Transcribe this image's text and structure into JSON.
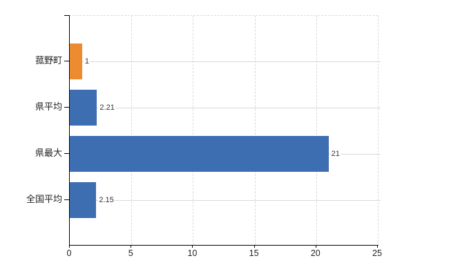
{
  "chart": {
    "background": "#ffffff",
    "axis_color": "#000000",
    "grid_color": "#d9d9d9",
    "horizontal_grid_color": "#d6dad5",
    "text_color": "#222222",
    "value_label_color": "#333333"
  },
  "chart_data": {
    "type": "bar",
    "orientation": "horizontal",
    "title": "",
    "xlabel": "",
    "ylabel": "",
    "legend": "none",
    "grid": "on",
    "xlim": [
      0,
      25
    ],
    "x_ticks": [
      "0",
      "5",
      "10",
      "15",
      "20",
      "25"
    ],
    "categories": [
      "菰野町",
      "県平均",
      "県最大",
      "全国平均"
    ],
    "values": [
      1,
      2.21,
      21,
      2.15
    ],
    "value_labels": [
      "1",
      "2.21",
      "21",
      "2.15"
    ],
    "bar_colors": [
      "#ec8b2f",
      "#3e6eb2",
      "#3e6eb2",
      "#3e6eb2"
    ],
    "highlight_color": "#ec8b2f",
    "base_color": "#3e6eb2"
  }
}
